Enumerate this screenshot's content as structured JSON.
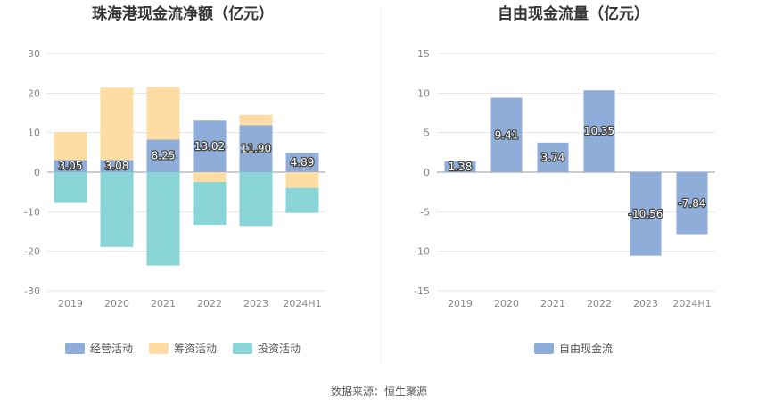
{
  "colors": {
    "operating": "#8eadd9",
    "financing": "#fedca3",
    "investing": "#88d4d6",
    "free_cash_flow": "#8eadd9",
    "grid": "#e6e6e6",
    "axis_text": "#888888",
    "title_text": "#333333"
  },
  "source": "数据来源：恒生聚源",
  "chart_data": [
    {
      "type": "bar",
      "stacked": true,
      "title": "珠海港现金流净额（亿元）",
      "categories": [
        "2019",
        "2020",
        "2021",
        "2022",
        "2023",
        "2024H1"
      ],
      "ylim": [
        -30,
        30
      ],
      "yticks": [
        "30",
        "20",
        "10",
        "0",
        "-10",
        "-20",
        "-30"
      ],
      "ytick_values": [
        30,
        20,
        10,
        0,
        -10,
        -20,
        -30
      ],
      "grid": true,
      "legend_position": "bottom",
      "series": [
        {
          "name": "经营活动",
          "color_key": "operating",
          "values": [
            3.05,
            3.08,
            8.25,
            13.02,
            11.9,
            4.89
          ],
          "labels": [
            "3.05",
            "3.08",
            "8.25",
            "13.02",
            "11.90",
            "4.89"
          ]
        },
        {
          "name": "筹资活动",
          "color_key": "financing",
          "values": [
            7.1,
            18.3,
            13.3,
            -2.5,
            2.6,
            -4.0
          ]
        },
        {
          "name": "投资活动",
          "color_key": "investing",
          "values": [
            -7.8,
            -18.9,
            -23.6,
            -10.8,
            -13.6,
            -6.3
          ]
        }
      ]
    },
    {
      "type": "bar",
      "stacked": false,
      "title": "自由现金流量（亿元）",
      "categories": [
        "2019",
        "2020",
        "2021",
        "2022",
        "2023",
        "2024H1"
      ],
      "ylim": [
        -15,
        15
      ],
      "yticks": [
        "15",
        "10",
        "5",
        "0",
        "-5",
        "-10",
        "-15"
      ],
      "ytick_values": [
        15,
        10,
        5,
        0,
        -5,
        -10,
        -15
      ],
      "grid": true,
      "legend_position": "bottom",
      "series": [
        {
          "name": "自由现金流",
          "color_key": "free_cash_flow",
          "values": [
            1.38,
            9.41,
            3.74,
            10.35,
            -10.56,
            -7.84
          ],
          "labels": [
            "1.38",
            "9.41",
            "3.74",
            "10.35",
            "-10.56",
            "-7.84"
          ]
        }
      ]
    }
  ]
}
